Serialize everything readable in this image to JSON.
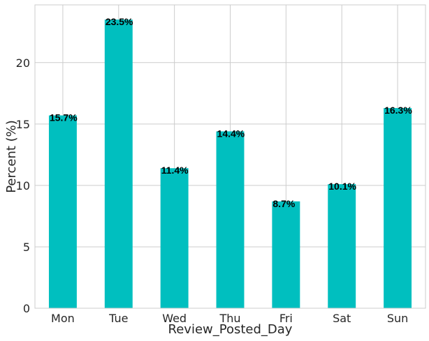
{
  "chart_data": {
    "type": "bar",
    "categories": [
      "Mon",
      "Tue",
      "Wed",
      "Thu",
      "Fri",
      "Sat",
      "Sun"
    ],
    "values": [
      15.7,
      23.5,
      11.4,
      14.4,
      8.7,
      10.1,
      16.3
    ],
    "data_labels": [
      "15.7%",
      "23.5%",
      "11.4%",
      "14.4%",
      "8.7%",
      "10.1%",
      "16.3%"
    ],
    "title": "",
    "xlabel": "Review_Posted_Day",
    "ylabel": "Percent (%)",
    "ylim": [
      0,
      24.7
    ],
    "yticks": [
      0,
      5,
      10,
      15,
      20
    ],
    "grid": true,
    "bar_color": "#00bfbf",
    "grid_color": "#cccccc"
  }
}
